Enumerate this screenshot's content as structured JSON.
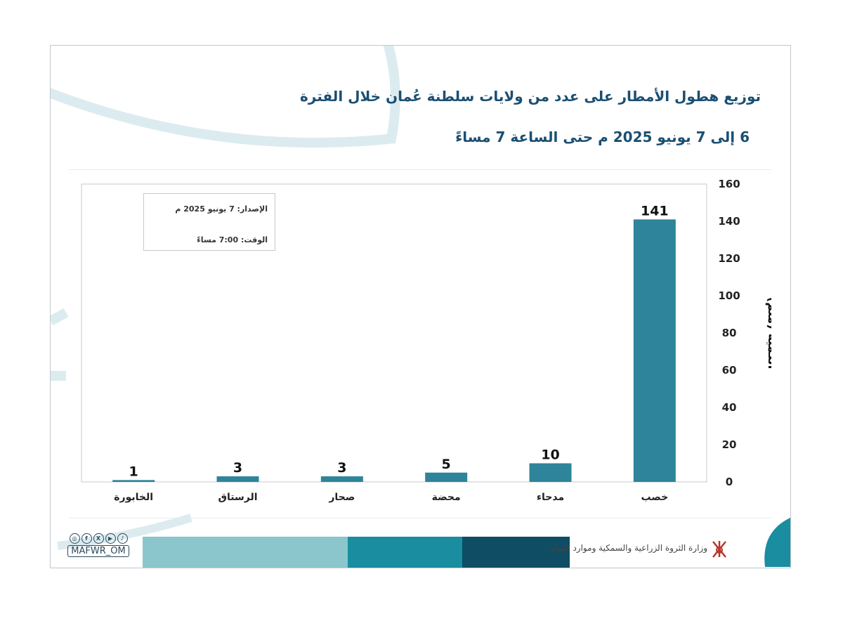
{
  "header": {
    "title": "توزيع هطول الأمطار على عدد من ولايات سلطنة عُمان خلال الفترة",
    "subtitle": "6 إلى 7 يونيو 2025 م حتى الساعة 7 مساءً"
  },
  "issue_box": {
    "issued": "الإصدار: 7 يونيو 2025 م",
    "time": "الوقت: 7:00  مساءً"
  },
  "chart_data": {
    "type": "bar",
    "title": "توزيع هطول الأمطار على عدد من ولايات سلطنة عُمان خلال الفترة 6 إلى 7 يونيو 2025 م حتى الساعة 7 مساءً",
    "categories": [
      "خصب",
      "مدحاء",
      "محضة",
      "صحار",
      "الرستاق",
      "الخابورة"
    ],
    "values": [
      141,
      10,
      5,
      3,
      3,
      1
    ],
    "xlabel": "",
    "ylabel": "الكمية (ملم)",
    "ylim": [
      0,
      160
    ],
    "yticks": [
      0,
      20,
      40,
      60,
      80,
      100,
      120,
      140,
      160
    ],
    "y_axis_side": "right",
    "data_labels": true,
    "grid": false
  },
  "footer": {
    "handle": "MAFWR_OM",
    "social_icons": [
      "instagram-icon",
      "facebook-icon",
      "x-icon",
      "youtube-icon",
      "tiktok-icon"
    ],
    "ministry": "وزارة الثروة الزراعية والسمكية وموارد المياه"
  },
  "colors": {
    "bar": "#2e849a",
    "title": "#1b4f72",
    "footer_1": "#8ac6cc",
    "footer_2": "#1a8da0",
    "footer_3": "#0e4d64"
  }
}
